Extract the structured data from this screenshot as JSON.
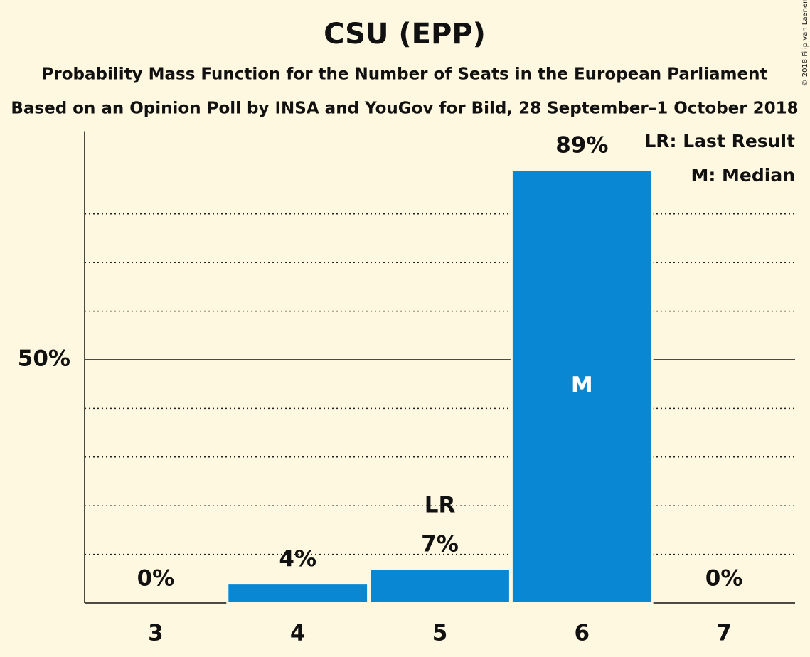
{
  "chart_data": {
    "type": "bar",
    "title": "CSU (EPP)",
    "subtitle": "Probability Mass Function for the Number of Seats in the European Parliament",
    "subtitle2": "Based on an Opinion Poll by INSA and YouGov for Bild, 28 September–1 October 2018",
    "categories": [
      "3",
      "4",
      "5",
      "6",
      "7"
    ],
    "values": [
      0,
      4,
      7,
      89,
      0
    ],
    "value_labels": [
      "0%",
      "4%",
      "7%",
      "89%",
      "0%"
    ],
    "color": "#0a87d2",
    "ylim": [
      0,
      97
    ],
    "yticks": [
      {
        "value": 50,
        "label": "50%"
      }
    ],
    "minor_yticks": [
      10,
      20,
      30,
      40,
      60,
      70,
      80
    ],
    "annotations": [
      {
        "category": "5",
        "text": "LR"
      },
      {
        "category": "6",
        "text": "M"
      }
    ],
    "legend": [
      "LR: Last Result",
      "M: Median"
    ],
    "copyright": "© 2018 Filip van Laenen"
  }
}
